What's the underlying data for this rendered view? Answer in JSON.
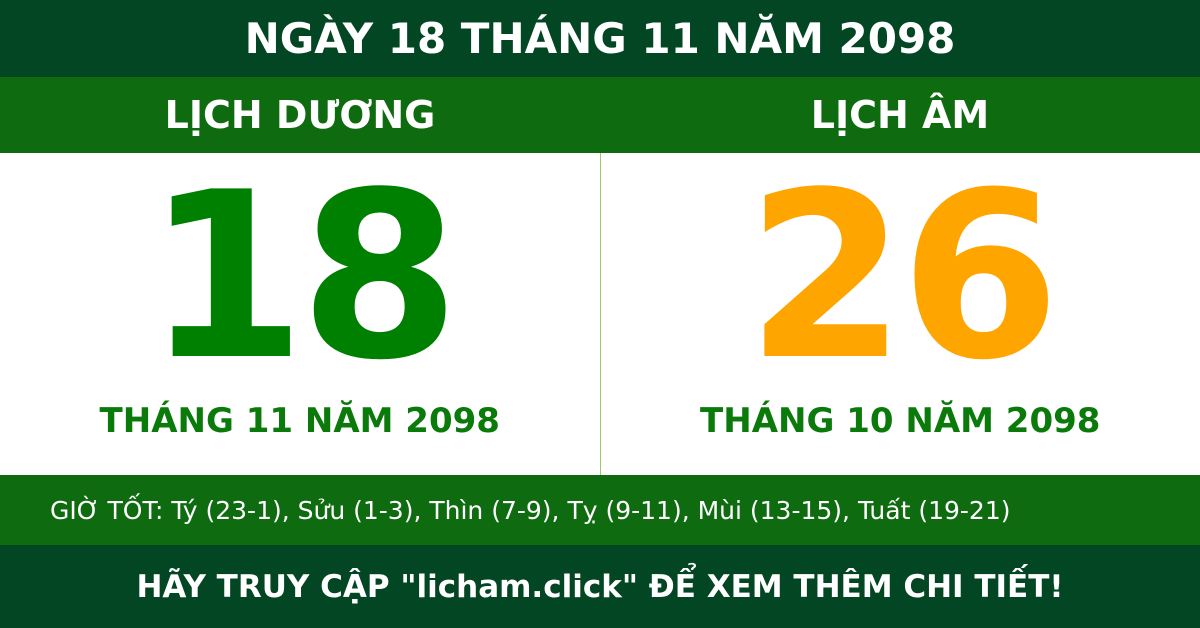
{
  "header": {
    "title": "NGÀY 18 THÁNG 11 NĂM 2098"
  },
  "solar": {
    "label": "LỊCH DƯƠNG",
    "day": "18",
    "month_year": "THÁNG 11 NĂM 2098",
    "color": "#008000"
  },
  "lunar": {
    "label": "LỊCH ÂM",
    "day": "26",
    "month_year": "THÁNG 10 NĂM 2098",
    "color": "#ffa500"
  },
  "good_hours": "GIỜ TỐT: Tý (23-1), Sửu (1-3), Thìn (7-9), Tỵ (9-11), Mùi (13-15), Tuất (19-21)",
  "footer": {
    "text": "HÃY TRUY CẬP \"licham.click\" ĐỂ XEM THÊM CHI TIẾT!"
  },
  "colors": {
    "dark_green": "#034623",
    "green": "#0f6b10"
  }
}
